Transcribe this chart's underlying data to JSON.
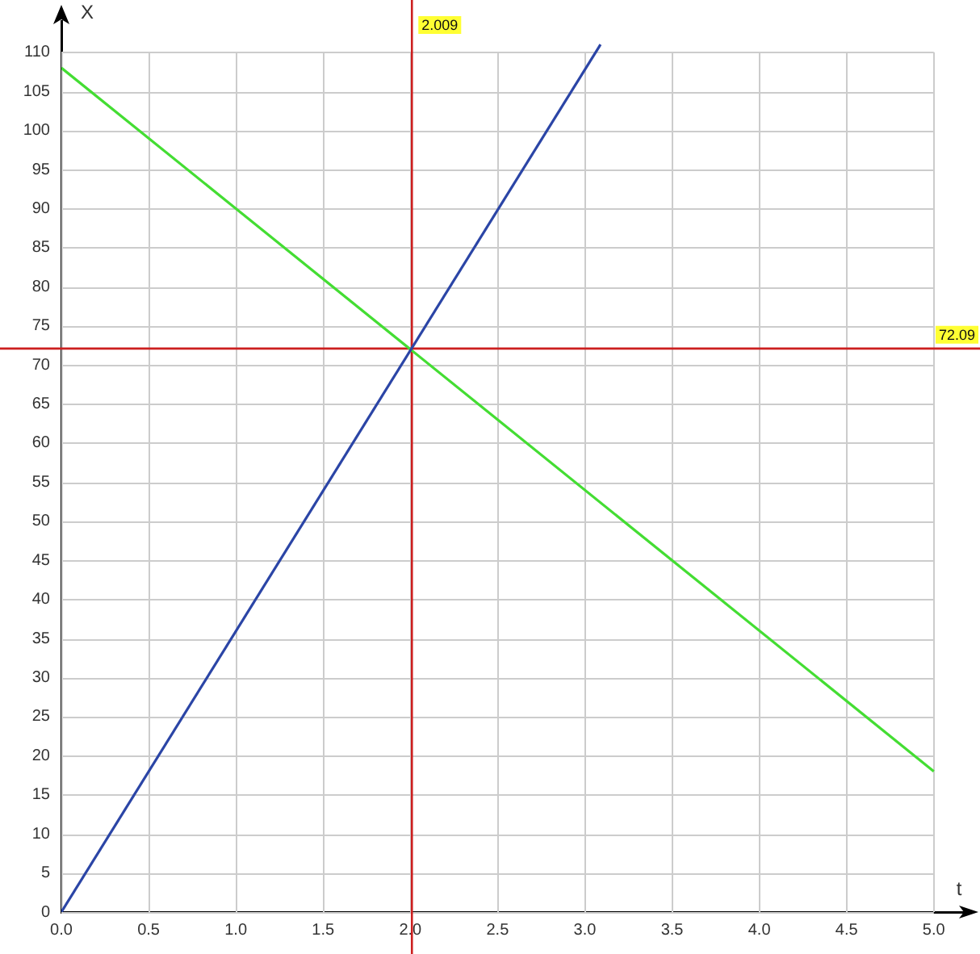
{
  "chart_data": {
    "type": "line",
    "xlabel": "t",
    "ylabel": "X",
    "xlim": [
      0,
      5.2
    ],
    "xticks": [
      {
        "value": 0,
        "label": "0.0"
      },
      0.5,
      {
        "value": 1,
        "label": "1.0"
      },
      1.5,
      {
        "value": 2,
        "label": "2.0"
      },
      2.5,
      {
        "value": 3,
        "label": "3.0"
      },
      3.5,
      {
        "value": 4,
        "label": "4.0"
      },
      4.5,
      {
        "value": 5,
        "label": "5.0"
      }
    ],
    "ylim": [
      0,
      114
    ],
    "yticks": [
      0,
      5,
      10,
      15,
      20,
      25,
      30,
      35,
      40,
      45,
      50,
      55,
      60,
      65,
      70,
      75,
      80,
      85,
      90,
      95,
      100,
      105,
      110
    ],
    "grid": true,
    "series": [
      {
        "color": "#2b45a6",
        "x": [
          0,
          3.09
        ],
        "values": [
          0,
          111
        ]
      },
      {
        "color": "#44dd33",
        "x": [
          0,
          5
        ],
        "values": [
          108,
          18
        ]
      }
    ],
    "ref_lines": [
      {
        "axis": "x",
        "value": 2.009,
        "label": "2.009",
        "color": "#cc1f1f"
      },
      {
        "axis": "y",
        "value": 72.09,
        "label": "72.09",
        "color": "#cc1f1f"
      }
    ]
  }
}
